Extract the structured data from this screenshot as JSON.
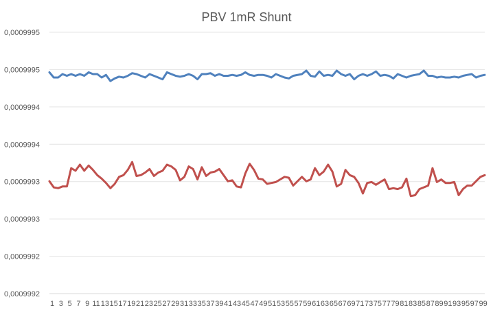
{
  "chart_data": {
    "type": "line",
    "title": "PBV 1mR Shunt",
    "ylim": [
      0.0009992,
      0.0009995
    ],
    "y_tick_labels": [
      "0,0009992",
      "0,0009992",
      "0,0009993",
      "0,0009993",
      "0,0009994",
      "0,0009994",
      "0,0009995",
      "0,0009995"
    ],
    "x_tick_labels": [
      "1",
      "3",
      "5",
      "7",
      "9",
      "11",
      "13",
      "15",
      "17",
      "19",
      "21",
      "23",
      "25",
      "27",
      "29",
      "31",
      "33",
      "35",
      "37",
      "39",
      "41",
      "43",
      "45",
      "47",
      "49",
      "51",
      "53",
      "55",
      "57",
      "59",
      "61",
      "63",
      "65",
      "67",
      "69",
      "71",
      "73",
      "75",
      "77",
      "79",
      "81",
      "83",
      "85",
      "87",
      "89",
      "91",
      "93",
      "95",
      "97",
      "99"
    ],
    "x": [
      1,
      2,
      3,
      4,
      5,
      6,
      7,
      8,
      9,
      10,
      11,
      12,
      13,
      14,
      15,
      16,
      17,
      18,
      19,
      20,
      21,
      22,
      23,
      24,
      25,
      26,
      27,
      28,
      29,
      30,
      31,
      32,
      33,
      34,
      35,
      36,
      37,
      38,
      39,
      40,
      41,
      42,
      43,
      44,
      45,
      46,
      47,
      48,
      49,
      50,
      51,
      52,
      53,
      54,
      55,
      56,
      57,
      59,
      60,
      61,
      62,
      63,
      64,
      65,
      66,
      67,
      68,
      69,
      70,
      71,
      72,
      73,
      74,
      75,
      76,
      77,
      78,
      79,
      80,
      81,
      82,
      83,
      84,
      85,
      86,
      87,
      88,
      89,
      90,
      91,
      92,
      93,
      94,
      95,
      96,
      97,
      98,
      99,
      100,
      101
    ],
    "grid": true,
    "legend": "none",
    "series": [
      {
        "color": "#4F81BD",
        "values": [
          0.000999454,
          0.000999448,
          0.000999448,
          0.000999452,
          0.00099945,
          0.000999452,
          0.00099945,
          0.000999452,
          0.00099945,
          0.000999454,
          0.000999452,
          0.000999452,
          0.000999448,
          0.000999451,
          0.000999444,
          0.000999447,
          0.000999449,
          0.000999448,
          0.00099945,
          0.000999453,
          0.000999452,
          0.00099945,
          0.000999448,
          0.000999452,
          0.00099945,
          0.000999448,
          0.000999446,
          0.000999454,
          0.000999452,
          0.00099945,
          0.000999449,
          0.00099945,
          0.000999452,
          0.00099945,
          0.000999446,
          0.000999452,
          0.000999452,
          0.000999453,
          0.00099945,
          0.000999452,
          0.00099945,
          0.00099945,
          0.000999451,
          0.00099945,
          0.000999451,
          0.000999454,
          0.000999451,
          0.00099945,
          0.000999451,
          0.000999451,
          0.00099945,
          0.000999448,
          0.000999452,
          0.00099945,
          0.000999448,
          0.000999447,
          0.00099945,
          0.000999452,
          0.000999456,
          0.00099945,
          0.000999449,
          0.000999455,
          0.00099945,
          0.000999451,
          0.00099945,
          0.000999456,
          0.000999452,
          0.00099945,
          0.000999452,
          0.000999446,
          0.00099945,
          0.000999452,
          0.00099945,
          0.000999452,
          0.000999455,
          0.00099945,
          0.000999451,
          0.00099945,
          0.000999447,
          0.000999452,
          0.00099945,
          0.000999448,
          0.00099945,
          0.000999451,
          0.000999452,
          0.000999456,
          0.00099945,
          0.00099945,
          0.000999448,
          0.000999449,
          0.000999448,
          0.000999448,
          0.000999449,
          0.000999448,
          0.00099945,
          0.000999451,
          0.000999452,
          0.000999448,
          0.00099945,
          0.000999451
        ]
      },
      {
        "color": "#C0504D",
        "values": [
          0.000999329,
          0.000999322,
          0.000999321,
          0.000999323,
          0.000999323,
          0.000999344,
          0.000999341,
          0.000999348,
          0.000999341,
          0.000999347,
          0.000999342,
          0.000999336,
          0.000999332,
          0.000999327,
          0.000999321,
          0.000999326,
          0.000999334,
          0.000999336,
          0.000999342,
          0.000999351,
          0.000999335,
          0.000999336,
          0.000999339,
          0.000999343,
          0.000999335,
          0.000999339,
          0.000999341,
          0.000999348,
          0.000999346,
          0.000999342,
          0.00099933,
          0.000999334,
          0.000999346,
          0.000999343,
          0.000999331,
          0.000999345,
          0.000999335,
          0.000999339,
          0.00099934,
          0.000999343,
          0.000999336,
          0.000999329,
          0.00099933,
          0.000999323,
          0.000999322,
          0.000999338,
          0.000999349,
          0.000999342,
          0.000999332,
          0.000999331,
          0.000999326,
          0.000999327,
          0.000999328,
          0.000999331,
          0.000999334,
          0.000999333,
          0.000999324,
          0.000999334,
          0.000999329,
          0.000999331,
          0.000999344,
          0.000999336,
          0.00099934,
          0.000999348,
          0.00099934,
          0.000999323,
          0.000999326,
          0.000999342,
          0.000999336,
          0.000999334,
          0.000999327,
          0.000999315,
          0.000999327,
          0.000999328,
          0.000999325,
          0.000999328,
          0.000999331,
          0.00099932,
          0.000999321,
          0.00099932,
          0.000999322,
          0.000999332,
          0.000999312,
          0.000999313,
          0.00099932,
          0.000999322,
          0.000999324,
          0.000999344,
          0.000999328,
          0.000999331,
          0.000999327,
          0.000999327,
          0.000999328,
          0.000999313,
          0.00099932,
          0.000999324,
          0.000999324,
          0.000999329,
          0.000999334,
          0.000999336
        ]
      }
    ]
  }
}
